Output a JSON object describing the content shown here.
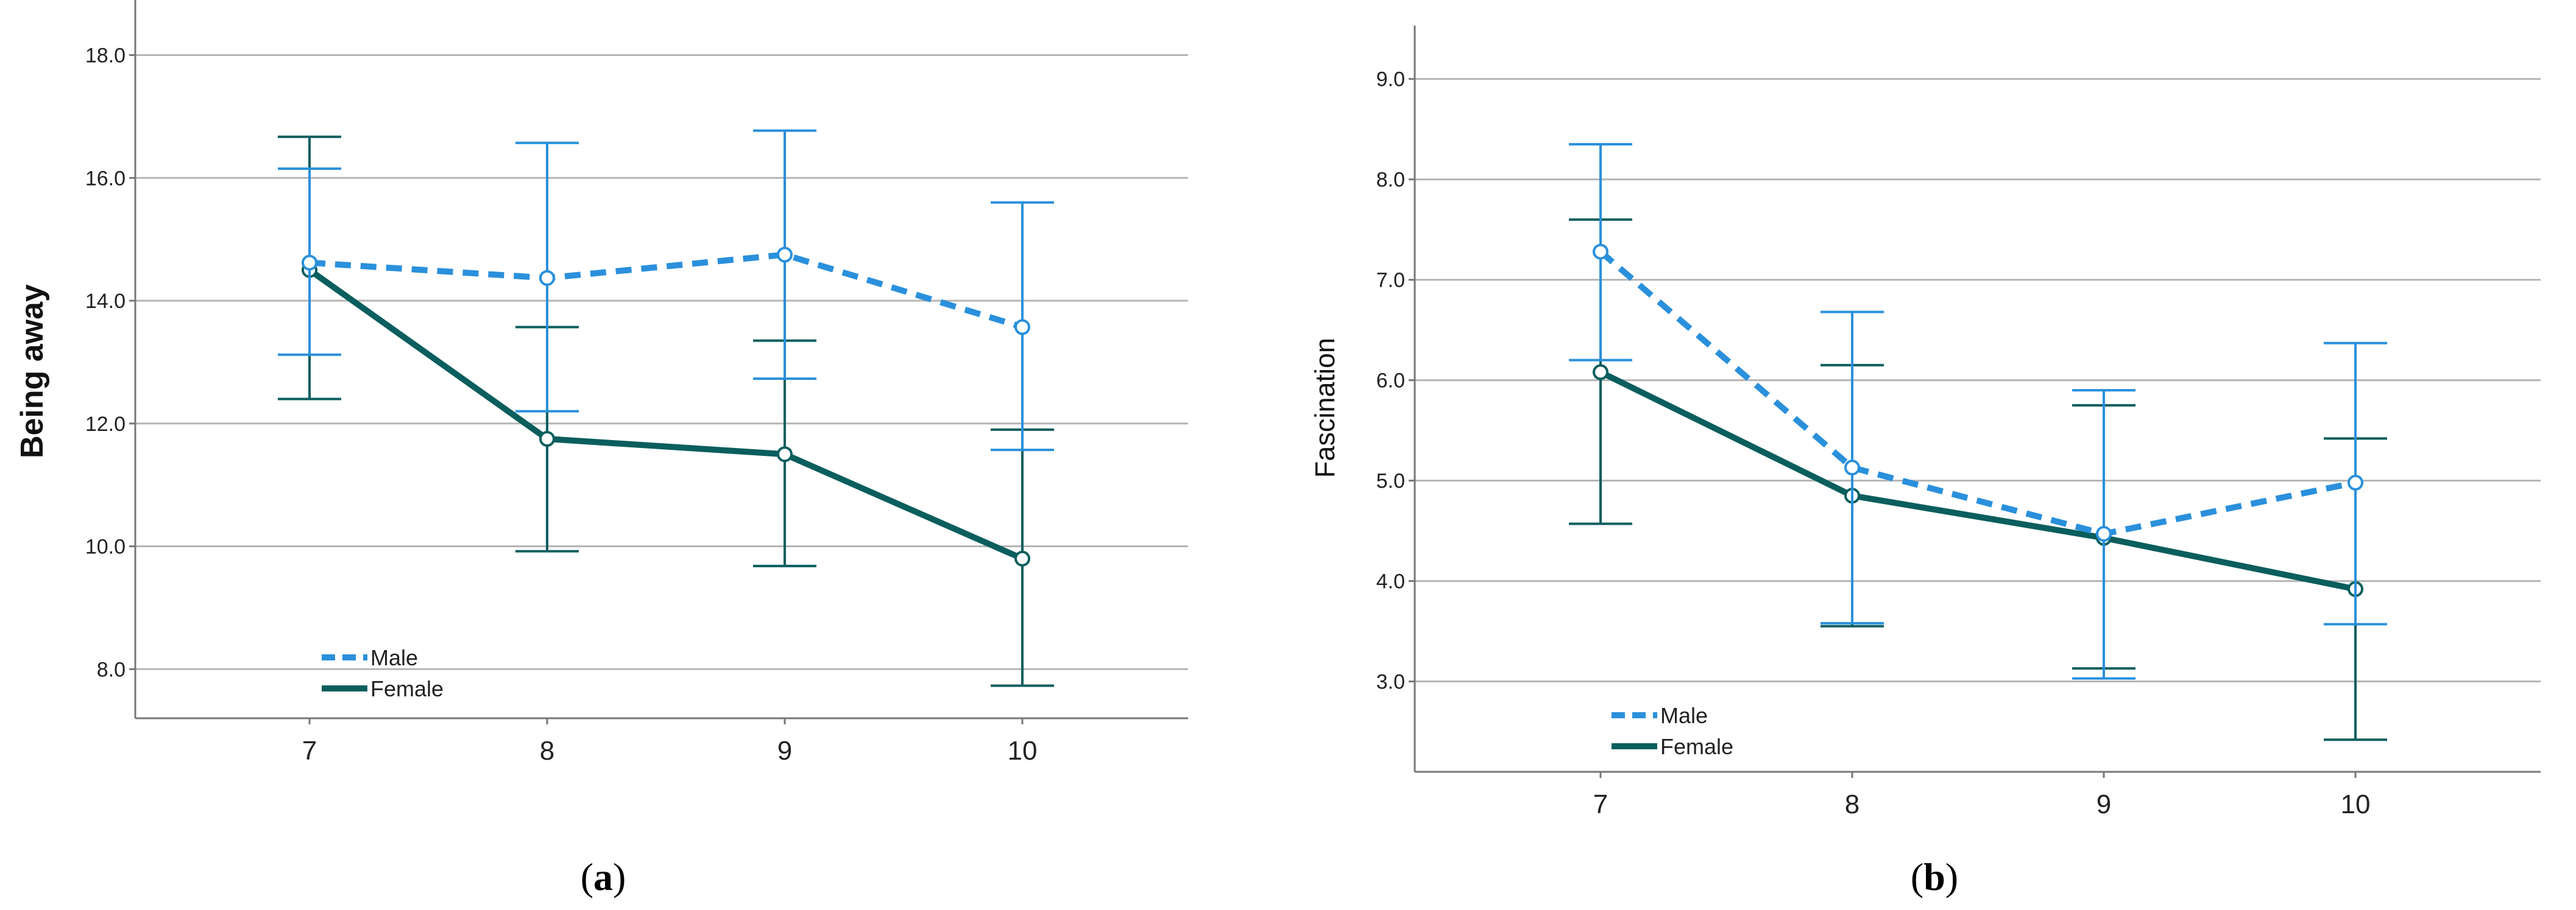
{
  "colors": {
    "male": "#2a90dc",
    "female": "#0b5e5e",
    "grid": "#b5b5b5",
    "axis": "#777777",
    "text": "#222222"
  },
  "chart_data": [
    {
      "type": "line",
      "panel_label": "a",
      "title": "",
      "xlabel": "",
      "ylabel": "Being away",
      "categories": [
        "7",
        "8",
        "9",
        "10"
      ],
      "yticks": [
        "8.0",
        "10.0",
        "12.0",
        "14.0",
        "16.0",
        "18.0"
      ],
      "ylim": [
        7.2,
        18.6
      ],
      "grid": true,
      "legend_position": "bottom-left",
      "series": [
        {
          "name": "Male",
          "style": "dashed",
          "values": [
            14.62,
            14.37,
            14.75,
            13.57
          ],
          "lower": [
            13.12,
            12.2,
            12.73,
            11.57
          ],
          "upper": [
            16.15,
            16.57,
            16.77,
            15.6
          ]
        },
        {
          "name": "Female",
          "style": "solid",
          "values": [
            14.5,
            11.75,
            11.5,
            9.8
          ],
          "lower": [
            12.4,
            9.92,
            9.68,
            7.73
          ],
          "upper": [
            16.67,
            13.57,
            13.35,
            11.9
          ]
        }
      ]
    },
    {
      "type": "line",
      "panel_label": "b",
      "title": "",
      "xlabel": "",
      "ylabel": "Fascination",
      "categories": [
        "7",
        "8",
        "9",
        "10"
      ],
      "yticks": [
        "3.0",
        "4.0",
        "5.0",
        "6.0",
        "7.0",
        "8.0",
        "9.0"
      ],
      "ylim": [
        2.1,
        9.35
      ],
      "grid": true,
      "legend_position": "bottom-left",
      "series": [
        {
          "name": "Male",
          "style": "dashed",
          "values": [
            7.28,
            5.13,
            4.47,
            4.98
          ],
          "lower": [
            6.2,
            3.58,
            3.03,
            3.57
          ],
          "upper": [
            8.35,
            6.68,
            5.9,
            6.37
          ]
        },
        {
          "name": "Female",
          "style": "solid",
          "values": [
            6.08,
            4.85,
            4.43,
            3.92
          ],
          "lower": [
            4.57,
            3.55,
            3.13,
            2.42
          ],
          "upper": [
            7.6,
            6.15,
            5.75,
            5.42
          ]
        }
      ]
    }
  ]
}
